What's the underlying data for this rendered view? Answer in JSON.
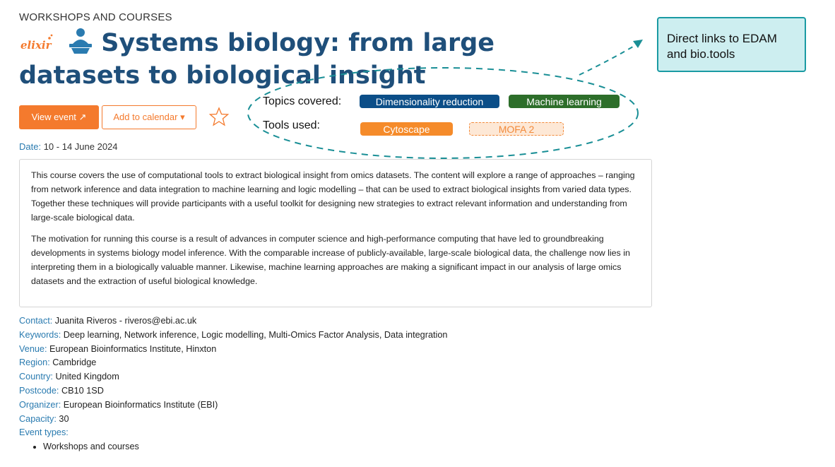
{
  "event": {
    "category": "WORKSHOPS AND COURSES",
    "title": "Systems biology: from large datasets to biological insight",
    "view_button": "View event ↗",
    "calendar_button": "Add to calendar ▾",
    "date_label": "Date:",
    "date_value": "10 - 14 June 2024",
    "description": [
      "This course covers the use of computational tools to extract biological insight from omics datasets. The content will explore a range of approaches – ranging from network inference and data integration to machine learning and logic modelling – that can be used to extract biological insights from varied data types. Together these techniques will provide participants with a useful toolkit for designing new strategies to extract relevant information and understanding from large-scale biological data.",
      "The motivation for running this course is a result of advances in computer science and high-performance computing that have led to groundbreaking developments in systems biology model inference. With the comparable increase of publicly-available, large-scale biological data, the challenge now lies in interpreting them in a biologically valuable manner. Likewise, machine learning approaches are making a significant impact in our analysis of large omics datasets and the extraction of useful biological knowledge."
    ],
    "fields": [
      {
        "label": "Contact:",
        "value": "Juanita Riveros - riveros@ebi.ac.uk"
      },
      {
        "label": "Keywords:",
        "value": "Deep learning, Network inference, Logic modelling, Multi-Omics Factor Analysis, Data integration"
      },
      {
        "label": "Venue:",
        "value": "European Bioinformatics Institute, Hinxton"
      },
      {
        "label": "Region:",
        "value": "Cambridge"
      },
      {
        "label": "Country:",
        "value": "United Kingdom"
      },
      {
        "label": "Postcode:",
        "value": "CB10 1SD"
      },
      {
        "label": "Organizer:",
        "value": "European Bioinformatics Institute (EBI)"
      },
      {
        "label": "Capacity:",
        "value": "30"
      }
    ],
    "event_types_label": "Event types:",
    "event_types": [
      "Workshops and courses"
    ],
    "logo_text": "elixir"
  },
  "annotation": {
    "topics_label": "Topics covered:",
    "tools_label": "Tools used:",
    "topics": [
      "Dimensionality reduction",
      "Machine learning"
    ],
    "tools": [
      "Cytoscape",
      "MOFA 2"
    ],
    "callout": "Direct links to EDAM and bio.tools",
    "colors": {
      "topic_1": "#0b4e88",
      "topic_2": "#2d6e2a",
      "tool_1": "#f58b2a",
      "tool_2_border": "#f28a3b",
      "dashed_line": "#1a8f96",
      "callout_bg": "#cdeef0"
    }
  },
  "icons": [
    "elixir-logo",
    "course-person-icon",
    "external-link-icon",
    "dropdown-caret-icon",
    "star-icon"
  ]
}
